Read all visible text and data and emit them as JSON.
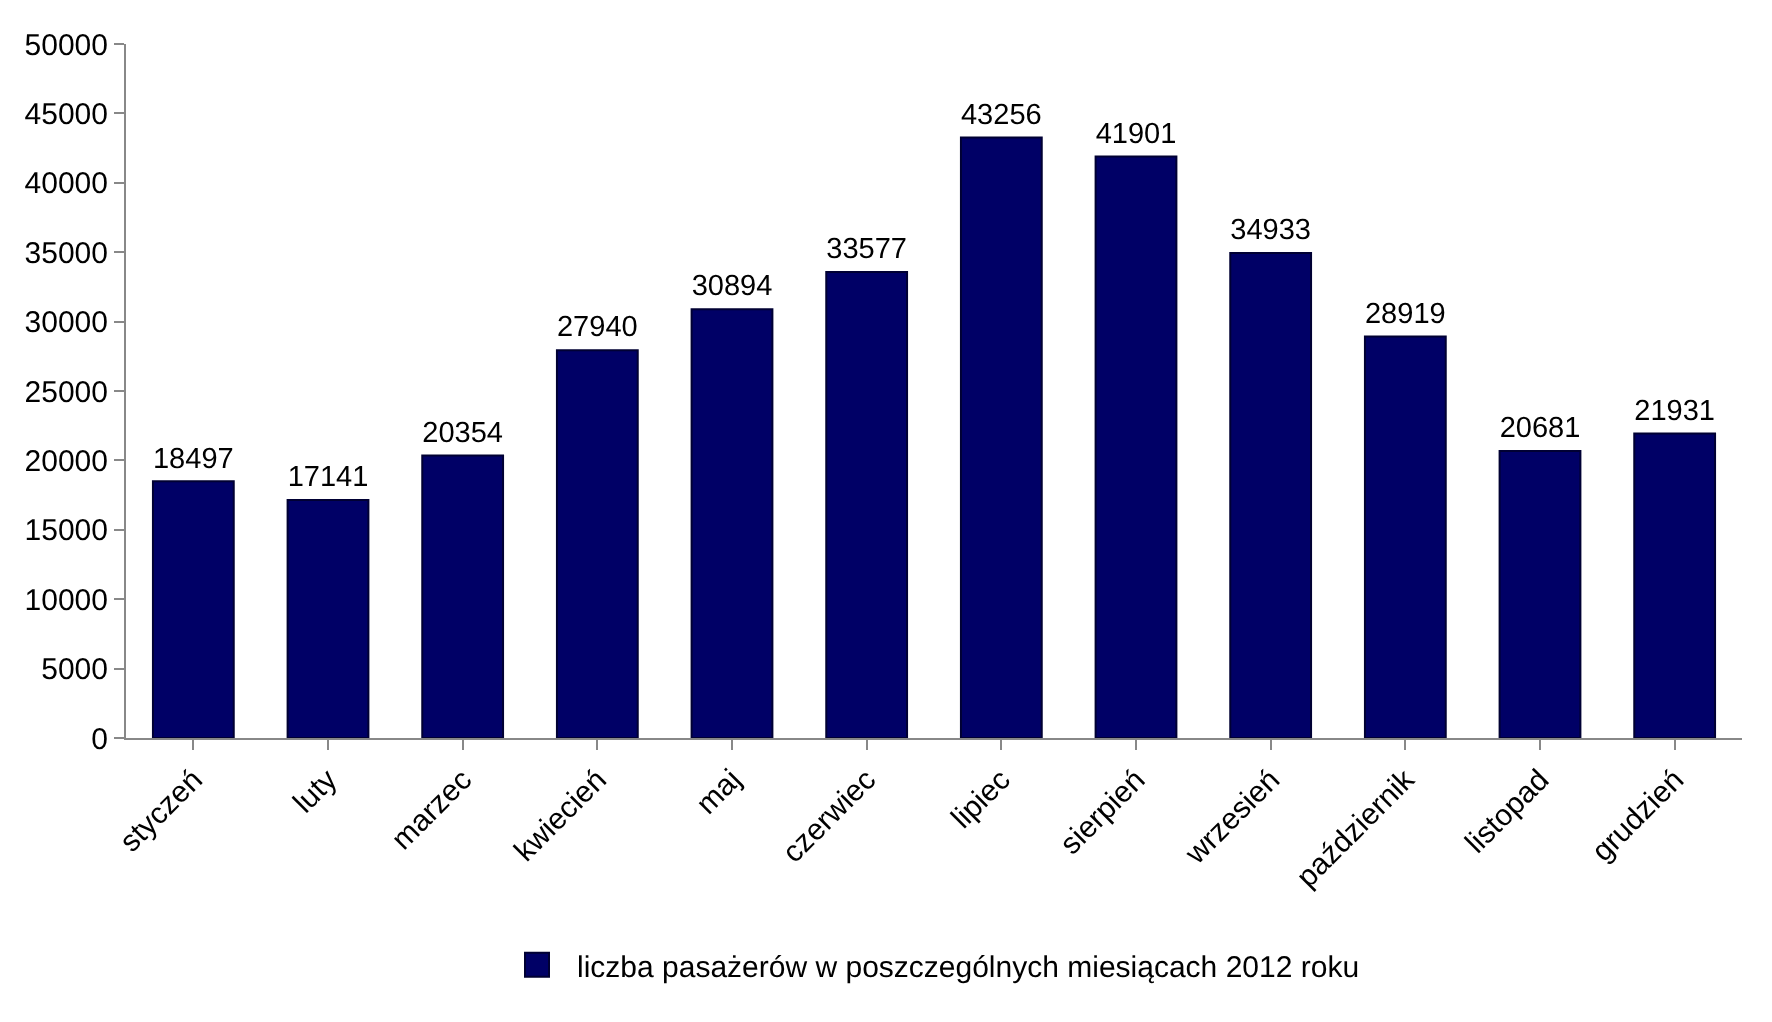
{
  "chart_data": {
    "type": "bar",
    "categories": [
      "styczeń",
      "luty",
      "marzec",
      "kwiecień",
      "maj",
      "czerwiec",
      "lipiec",
      "sierpień",
      "wrzesień",
      "październik",
      "listopad",
      "grudzień"
    ],
    "series": [
      {
        "name": "liczba pasażerów w poszczególnych miesiącach 2012 roku",
        "color": "#000066",
        "values": [
          18497,
          17141,
          20354,
          27940,
          30894,
          33577,
          43256,
          41901,
          34933,
          28919,
          20681,
          21931
        ]
      }
    ],
    "ylim": [
      0,
      50000
    ],
    "yticks": [
      0,
      5000,
      10000,
      15000,
      20000,
      25000,
      30000,
      35000,
      40000,
      45000,
      50000
    ],
    "grid": false,
    "legend": "bottom",
    "data_labels": true
  }
}
